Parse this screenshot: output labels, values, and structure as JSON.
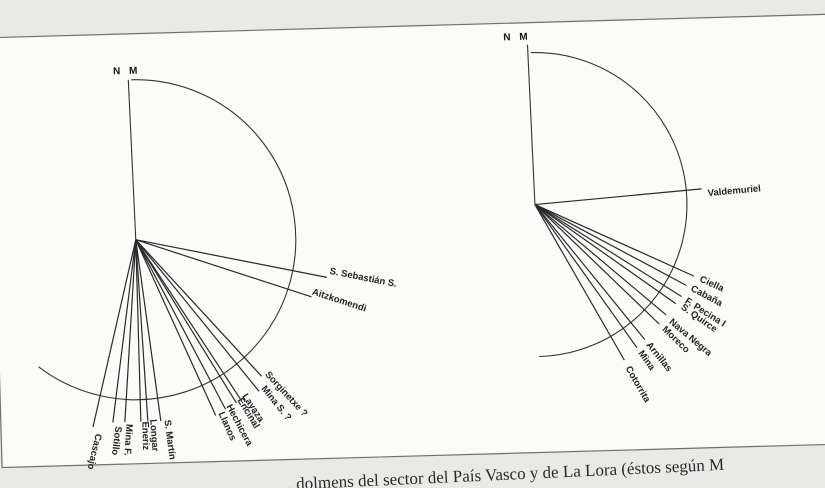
{
  "caption": "... dolmens del sector del País Vasco y de La Lora (éstos según M",
  "diagrams": [
    {
      "id": "pais-vasco",
      "north_label": "N",
      "magnetic_label": "M",
      "rays": [
        {
          "label": "S. Sebastián S."
        },
        {
          "label": "Aitzkomendi"
        },
        {
          "label": "Sorginetxe ?"
        },
        {
          "label": "Mina S. ?"
        },
        {
          "label": "Layaza"
        },
        {
          "label": "Encinal"
        },
        {
          "label": "Hechicera"
        },
        {
          "label": "Llanos"
        },
        {
          "label": "S. Martín"
        },
        {
          "label": "Longar"
        },
        {
          "label": "Eneriz"
        },
        {
          "label": "Mina F."
        },
        {
          "label": "Sotillo"
        },
        {
          "label": "Cascajo"
        }
      ]
    },
    {
      "id": "la-lora",
      "north_label": "N",
      "magnetic_label": "M",
      "rays": [
        {
          "label": "Valdemuriel"
        },
        {
          "label": "Ciella"
        },
        {
          "label": "Cabaña"
        },
        {
          "label": "F. Pecina I"
        },
        {
          "label": "S. Quirce"
        },
        {
          "label": "Nava Negra"
        },
        {
          "label": "Moreco"
        },
        {
          "label": "Arnillas"
        },
        {
          "label": "Mina"
        },
        {
          "label": "Cotorrita"
        }
      ]
    }
  ]
}
